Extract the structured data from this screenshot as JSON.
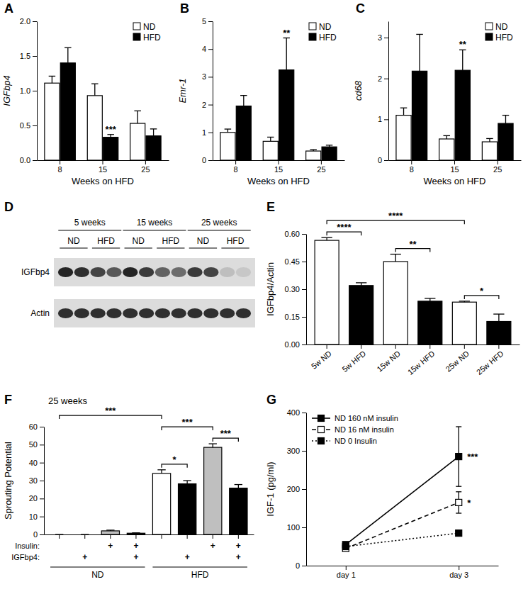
{
  "chart_data": [
    {
      "type": "bar",
      "title": "A",
      "ylabel": "IGFbp4",
      "xlabel": "Weeks on HFD",
      "categories": [
        "8",
        "15",
        "25"
      ],
      "series": [
        {
          "name": "ND",
          "color": "#ffffff",
          "values": [
            1.11,
            0.93,
            0.53
          ],
          "errors": [
            0.1,
            0.17,
            0.18
          ]
        },
        {
          "name": "HFD",
          "color": "#000000",
          "values": [
            1.4,
            0.33,
            0.35
          ],
          "errors": [
            0.22,
            0.04,
            0.1
          ]
        }
      ],
      "ylim": [
        0,
        2
      ],
      "yticks": [
        {
          "value": 0,
          "label": "0.0"
        },
        {
          "value": 0.5,
          "label": "0.5"
        },
        {
          "value": 1,
          "label": "1.0"
        },
        {
          "value": 1.5,
          "label": "1.5"
        },
        {
          "value": 2,
          "label": "2.0"
        }
      ],
      "legend": "top-right",
      "annotations": [
        {
          "text": "***",
          "category": 1,
          "series": 1
        }
      ]
    },
    {
      "type": "bar",
      "title": "B",
      "ylabel": "Emr-1",
      "xlabel": "Weeks on HFD",
      "categories": [
        "8",
        "15",
        "25"
      ],
      "series": [
        {
          "name": "ND",
          "color": "#ffffff",
          "values": [
            1.0,
            0.68,
            0.33
          ],
          "errors": [
            0.12,
            0.15,
            0.05
          ]
        },
        {
          "name": "HFD",
          "color": "#000000",
          "values": [
            1.95,
            3.25,
            0.48
          ],
          "errors": [
            0.38,
            1.15,
            0.06
          ]
        }
      ],
      "ylim": [
        0,
        5
      ],
      "yticks": [
        0,
        1,
        2,
        3,
        4,
        5
      ],
      "legend": "top-right",
      "annotations": [
        {
          "text": "**",
          "category": 1,
          "series": 1
        }
      ]
    },
    {
      "type": "bar",
      "title": "C",
      "ylabel": "cd68",
      "xlabel": "Weeks on HFD",
      "categories": [
        "8",
        "15",
        "25"
      ],
      "series": [
        {
          "name": "ND",
          "color": "#ffffff",
          "values": [
            1.1,
            0.52,
            0.45
          ],
          "errors": [
            0.18,
            0.08,
            0.08
          ]
        },
        {
          "name": "HFD",
          "color": "#000000",
          "values": [
            2.18,
            2.2,
            0.9
          ],
          "errors": [
            0.9,
            0.5,
            0.2
          ]
        }
      ],
      "ylim": [
        0,
        3.4
      ],
      "yticks": [
        0,
        1,
        2,
        3
      ],
      "legend": "top-right",
      "annotations": [
        {
          "text": "**",
          "category": 1,
          "series": 1
        }
      ]
    },
    {
      "type": "blot",
      "title": "D",
      "groups": [
        {
          "label": "5 weeks",
          "conditions": [
            "ND",
            "HFD"
          ]
        },
        {
          "label": "15 weeks",
          "conditions": [
            "ND",
            "HFD"
          ]
        },
        {
          "label": "25 weeks",
          "conditions": [
            "ND",
            "HFD"
          ]
        }
      ],
      "rows": [
        {
          "name": "IGFbp4",
          "intensity": [
            0.9,
            0.85,
            0.75,
            0.65,
            0.9,
            0.8,
            0.6,
            0.55,
            0.8,
            0.75,
            0.15,
            0.1
          ]
        },
        {
          "name": "Actin",
          "intensity": [
            0.85,
            0.85,
            0.85,
            0.85,
            0.85,
            0.85,
            0.85,
            0.85,
            0.85,
            0.85,
            0.85,
            0.85
          ]
        }
      ]
    },
    {
      "type": "bar",
      "title": "E",
      "ylabel": "IGFbp4/Actin",
      "categories": [
        "5w ND",
        "5w HFD",
        "15w ND",
        "15w HFD",
        "25w ND",
        "25w HFD"
      ],
      "values": [
        0.565,
        0.32,
        0.45,
        0.235,
        0.23,
        0.125
      ],
      "errors": [
        0.015,
        0.015,
        0.04,
        0.015,
        0.005,
        0.04
      ],
      "colors": [
        "#ffffff",
        "#000000",
        "#ffffff",
        "#000000",
        "#ffffff",
        "#000000"
      ],
      "ylim": [
        0,
        0.6
      ],
      "yticks": [
        {
          "value": 0,
          "label": "0.00"
        },
        {
          "value": 0.15,
          "label": "0.15"
        },
        {
          "value": 0.3,
          "label": "0.30"
        },
        {
          "value": 0.45,
          "label": "0.45"
        },
        {
          "value": 0.6,
          "label": "0.60"
        }
      ],
      "brackets": [
        {
          "from": 0,
          "to": 1,
          "text": "****"
        },
        {
          "from": 2,
          "to": 3,
          "text": "**"
        },
        {
          "from": 4,
          "to": 5,
          "text": "*"
        },
        {
          "from": 0,
          "to": 4,
          "text": "****"
        }
      ]
    },
    {
      "type": "bar",
      "title": "F",
      "subtitle": "25 weeks",
      "ylabel": "Sprouting Potential",
      "categories": [
        null,
        null,
        null,
        null,
        null,
        null,
        null,
        null
      ],
      "values": [
        0,
        0,
        2.0,
        0.7,
        34,
        28.2,
        48.5,
        25.8
      ],
      "errors": [
        0,
        0,
        0.4,
        0.2,
        2,
        1.8,
        2,
        2
      ],
      "colors": [
        "#ffffff",
        "#000000",
        "#bfbfbf",
        "#000000",
        "#ffffff",
        "#000000",
        "#bfbfbf",
        "#000000"
      ],
      "ylim": [
        0,
        60
      ],
      "yticks": [
        0,
        10,
        20,
        30,
        40,
        50,
        60
      ],
      "condition_rows": [
        {
          "name": "Insulin:",
          "marks": [
            null,
            null,
            "+",
            "+",
            null,
            null,
            "+",
            "+"
          ]
        },
        {
          "name": "IGFbp4:",
          "marks": [
            null,
            "+",
            null,
            "+",
            null,
            "+",
            null,
            "+"
          ]
        }
      ],
      "groups": [
        {
          "label": "ND",
          "size": 4
        },
        {
          "label": "HFD",
          "size": 4
        }
      ],
      "brackets": [
        {
          "from": 4,
          "to": 5,
          "text": "*"
        },
        {
          "from": 6,
          "to": 7,
          "text": "***"
        },
        {
          "from": 4,
          "to": 6,
          "text": "***"
        },
        {
          "from": 0,
          "to": 4,
          "text": "***"
        }
      ]
    },
    {
      "type": "line",
      "title": "G",
      "ylabel": "IGF-1 (pg/ml)",
      "categories": [
        "day 1",
        "day 3"
      ],
      "series": [
        {
          "name": "ND 160 nM insulin",
          "color": "#000000",
          "marker": "square",
          "line_style": "solid",
          "values": [
            55,
            285
          ],
          "errors": [
            6,
            78
          ]
        },
        {
          "name": "ND 16 nM insulin",
          "color": "#ffffff",
          "marker": "square",
          "line_style": "dashed",
          "values": [
            45,
            165
          ],
          "errors": [
            5,
            28
          ]
        },
        {
          "name": "ND 0 Insulin",
          "color": "#000000",
          "marker": "square",
          "line_style": "dotted",
          "values": [
            50,
            85
          ],
          "errors": [
            4,
            5
          ]
        }
      ],
      "ylim": [
        0,
        400
      ],
      "yticks": [
        0,
        100,
        200,
        300,
        400
      ],
      "legend": "top-left",
      "annotations": [
        {
          "text": "***",
          "series": 0,
          "category": 1
        },
        {
          "text": "*",
          "series": 1,
          "category": 1
        }
      ]
    }
  ]
}
